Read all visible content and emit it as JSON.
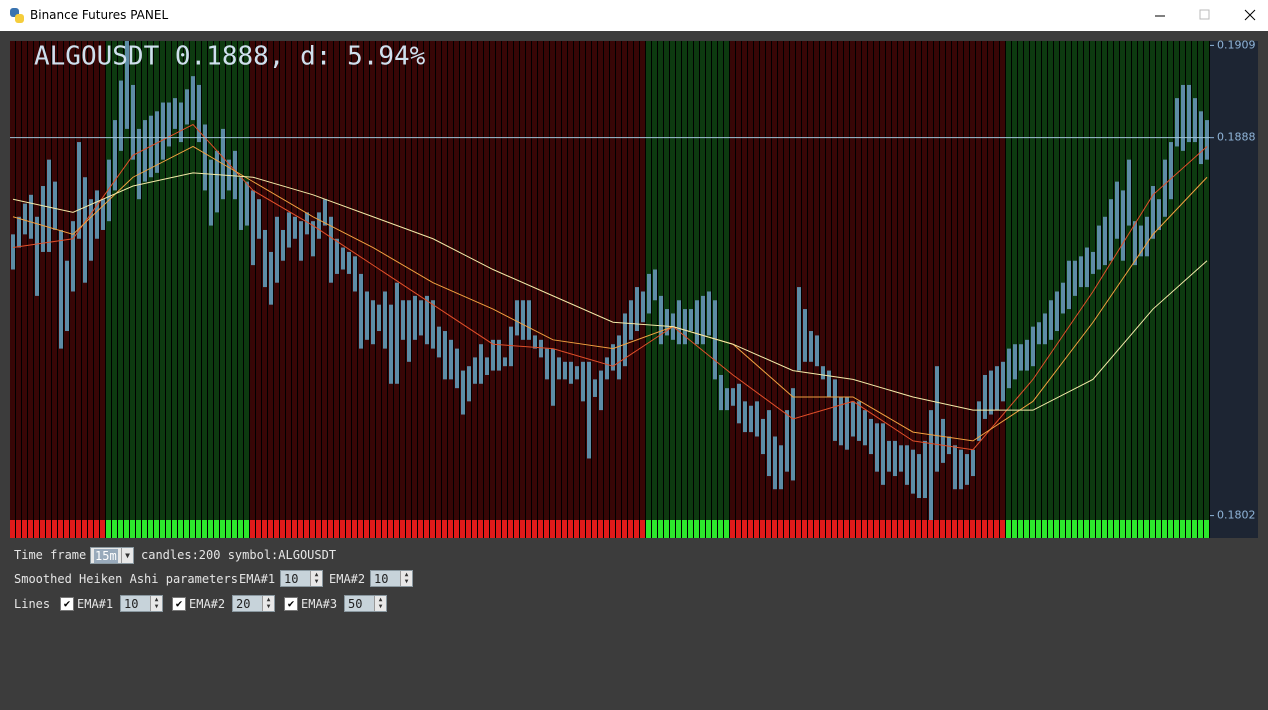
{
  "window": {
    "title": "Binance Futures PANEL"
  },
  "chart_data": {
    "type": "range_bar",
    "title": "ALGOUSDT 0.1888, d: 5.94%",
    "high": [
      0.1866,
      0.187,
      0.1873,
      0.1875,
      0.187,
      0.1877,
      0.1883,
      0.1878,
      0.1867,
      0.186,
      0.1869,
      0.1887,
      0.1879,
      0.1874,
      0.1876,
      0.1874,
      0.1883,
      0.1892,
      0.1901,
      0.191,
      0.19,
      0.189,
      0.1892,
      0.1893,
      0.1894,
      0.1896,
      0.1896,
      0.1897,
      0.1896,
      0.1899,
      0.1902,
      0.19,
      0.1891,
      0.1883,
      0.1885,
      0.189,
      0.1883,
      0.1885,
      0.1879,
      0.1878,
      0.1876,
      0.1874,
      0.1867,
      0.1862,
      0.187,
      0.1867,
      0.1871,
      0.187,
      0.1869,
      0.1871,
      0.1869,
      0.1871,
      0.1874,
      0.187,
      0.1865,
      0.1863,
      0.1862,
      0.1861,
      0.1857,
      0.1853,
      0.1851,
      0.185,
      0.1853,
      0.185,
      0.1855,
      0.1851,
      0.1851,
      0.1852,
      0.1851,
      0.1852,
      0.1851,
      0.1845,
      0.1844,
      0.1842,
      0.184,
      0.1835,
      0.1836,
      0.1838,
      0.1841,
      0.1838,
      0.1842,
      0.1842,
      0.1838,
      0.1845,
      0.1851,
      0.1851,
      0.1851,
      0.1843,
      0.1842,
      0.184,
      0.184,
      0.1838,
      0.1837,
      0.1837,
      0.1836,
      0.1837,
      0.1837,
      0.1833,
      0.1835,
      0.1838,
      0.1841,
      0.1843,
      0.1848,
      0.1851,
      0.1854,
      0.1853,
      0.1857,
      0.1858,
      0.1852,
      0.1849,
      0.1848,
      0.1851,
      0.1849,
      0.1849,
      0.1851,
      0.1852,
      0.1853,
      0.1851,
      0.1834,
      0.1831,
      0.1831,
      0.1832,
      0.1828,
      0.1827,
      0.1828,
      0.1824,
      0.1826,
      0.182,
      0.1818,
      0.1826,
      0.1831,
      0.1854,
      0.1849,
      0.1844,
      0.1843,
      0.1836,
      0.1835,
      0.1833,
      0.1829,
      0.1829,
      0.1828,
      0.1828,
      0.1826,
      0.1824,
      0.1823,
      0.1823,
      0.1819,
      0.1819,
      0.1818,
      0.1818,
      0.1817,
      0.1816,
      0.1819,
      0.1826,
      0.1836,
      0.1824,
      0.182,
      0.1818,
      0.1817,
      0.1816,
      0.1817,
      0.1828,
      0.1834,
      0.1835,
      0.1836,
      0.1837,
      0.184,
      0.1841,
      0.1841,
      0.1842,
      0.1845,
      0.1846,
      0.1848,
      0.1851,
      0.1853,
      0.1855,
      0.186,
      0.186,
      0.1861,
      0.1863,
      0.1862,
      0.1868,
      0.187,
      0.1874,
      0.1878,
      0.1876,
      0.1883,
      0.1869,
      0.1868,
      0.187,
      0.1877,
      0.1874,
      0.1883,
      0.1887,
      0.1897,
      0.19,
      0.19,
      0.1897,
      0.1894,
      0.1892
    ],
    "low": [
      0.1858,
      0.1863,
      0.1866,
      0.1865,
      0.1852,
      0.1862,
      0.1862,
      0.1867,
      0.184,
      0.1844,
      0.1853,
      0.1865,
      0.1855,
      0.186,
      0.1865,
      0.1867,
      0.1869,
      0.1876,
      0.1885,
      0.189,
      0.1883,
      0.1874,
      0.1878,
      0.1879,
      0.188,
      0.1883,
      0.1886,
      0.189,
      0.1887,
      0.1891,
      0.1892,
      0.1887,
      0.1876,
      0.1868,
      0.1871,
      0.1874,
      0.1876,
      0.1874,
      0.1867,
      0.1868,
      0.1859,
      0.1865,
      0.1854,
      0.185,
      0.1855,
      0.186,
      0.1863,
      0.1865,
      0.186,
      0.1866,
      0.1861,
      0.1865,
      0.1868,
      0.1855,
      0.1857,
      0.1858,
      0.1857,
      0.1853,
      0.184,
      0.1842,
      0.1841,
      0.1844,
      0.184,
      0.1832,
      0.1832,
      0.1842,
      0.1837,
      0.1842,
      0.1843,
      0.1841,
      0.184,
      0.1838,
      0.1833,
      0.1833,
      0.1831,
      0.1825,
      0.1828,
      0.1832,
      0.1832,
      0.1834,
      0.1835,
      0.1835,
      0.1836,
      0.1836,
      0.1843,
      0.1842,
      0.1842,
      0.184,
      0.1838,
      0.1833,
      0.1827,
      0.1833,
      0.1833,
      0.1832,
      0.1833,
      0.1828,
      0.1815,
      0.1829,
      0.1826,
      0.1833,
      0.1835,
      0.1833,
      0.1836,
      0.1842,
      0.1844,
      0.1846,
      0.1848,
      0.1851,
      0.1841,
      0.1843,
      0.1842,
      0.1841,
      0.1841,
      0.1844,
      0.1841,
      0.1841,
      0.1843,
      0.1833,
      0.1826,
      0.1826,
      0.1827,
      0.1823,
      0.1821,
      0.1821,
      0.182,
      0.1816,
      0.1811,
      0.1808,
      0.1808,
      0.1812,
      0.181,
      0.1835,
      0.1837,
      0.1837,
      0.1836,
      0.1833,
      0.1829,
      0.1819,
      0.1818,
      0.1817,
      0.182,
      0.1819,
      0.1818,
      0.1816,
      0.1812,
      0.1809,
      0.1812,
      0.1811,
      0.1812,
      0.1809,
      0.1807,
      0.1806,
      0.1806,
      0.1801,
      0.1812,
      0.1814,
      0.1816,
      0.1808,
      0.1808,
      0.1809,
      0.1811,
      0.1819,
      0.1824,
      0.1825,
      0.1826,
      0.1828,
      0.1831,
      0.1833,
      0.1835,
      0.1835,
      0.1836,
      0.1841,
      0.1841,
      0.1842,
      0.1844,
      0.1848,
      0.1849,
      0.1852,
      0.1854,
      0.1854,
      0.1857,
      0.1858,
      0.1859,
      0.186,
      0.1865,
      0.186,
      0.1868,
      0.1859,
      0.1861,
      0.1861,
      0.1865,
      0.1867,
      0.187,
      0.1874,
      0.1886,
      0.1885,
      0.1887,
      0.1887,
      0.1882,
      0.1883
    ],
    "color": "#5d8ca6",
    "up_ranges": [
      [
        16,
        39
      ],
      [
        106,
        119
      ],
      [
        166,
        199
      ]
    ],
    "up_color": "#0d3a10",
    "down_color": "#380606",
    "up_strip_color": "#2ce82c",
    "down_strip_color": "#e01a1a",
    "ema_x": [
      0,
      10,
      20,
      30,
      40,
      50,
      60,
      70,
      80,
      90,
      100,
      110,
      120,
      130,
      140,
      150,
      160,
      170,
      180,
      190,
      199
    ],
    "series": [
      {
        "color": "#e0502a",
        "values": [
          0.1863,
          0.1865,
          0.1884,
          0.1891,
          0.1876,
          0.1868,
          0.1859,
          0.185,
          0.1841,
          0.184,
          0.1836,
          0.1845,
          0.1834,
          0.1824,
          0.1828,
          0.1819,
          0.1817,
          0.1833,
          0.1853,
          0.1875,
          0.1886
        ]
      },
      {
        "color": "#f0a040",
        "values": [
          0.187,
          0.1866,
          0.1879,
          0.1886,
          0.1878,
          0.187,
          0.1863,
          0.1855,
          0.1849,
          0.1842,
          0.184,
          0.1845,
          0.1841,
          0.1829,
          0.1829,
          0.1821,
          0.1819,
          0.1828,
          0.1846,
          0.1866,
          0.1879
        ]
      },
      {
        "color": "#f4eaa8",
        "values": [
          0.1874,
          0.1871,
          0.1877,
          0.188,
          0.1879,
          0.1875,
          0.187,
          0.1865,
          0.1858,
          0.1852,
          0.1846,
          0.1845,
          0.1841,
          0.1835,
          0.1833,
          0.1829,
          0.1826,
          0.1826,
          0.1833,
          0.1849,
          0.186
        ]
      }
    ],
    "current_price": 0.1888,
    "ylim": [
      0.1801,
      0.191
    ],
    "yticks": [
      0.1802,
      0.1888,
      0.1909
    ]
  },
  "controls": {
    "time_frame_label": "Time frame",
    "time_frame": "15m",
    "info": "candles:200 symbol:ALGOUSDT",
    "ha_label": "Smoothed Heiken Ashi parameters",
    "ha_ema1_label": "EMA#1",
    "ha_ema1": 10,
    "ha_ema2_label": "EMA#2",
    "ha_ema2": 10,
    "lines_label": "Lines",
    "lines": [
      {
        "label": "EMA#1",
        "value": 10
      },
      {
        "label": "EMA#2",
        "value": 20
      },
      {
        "label": "EMA#3",
        "value": 50
      }
    ]
  }
}
